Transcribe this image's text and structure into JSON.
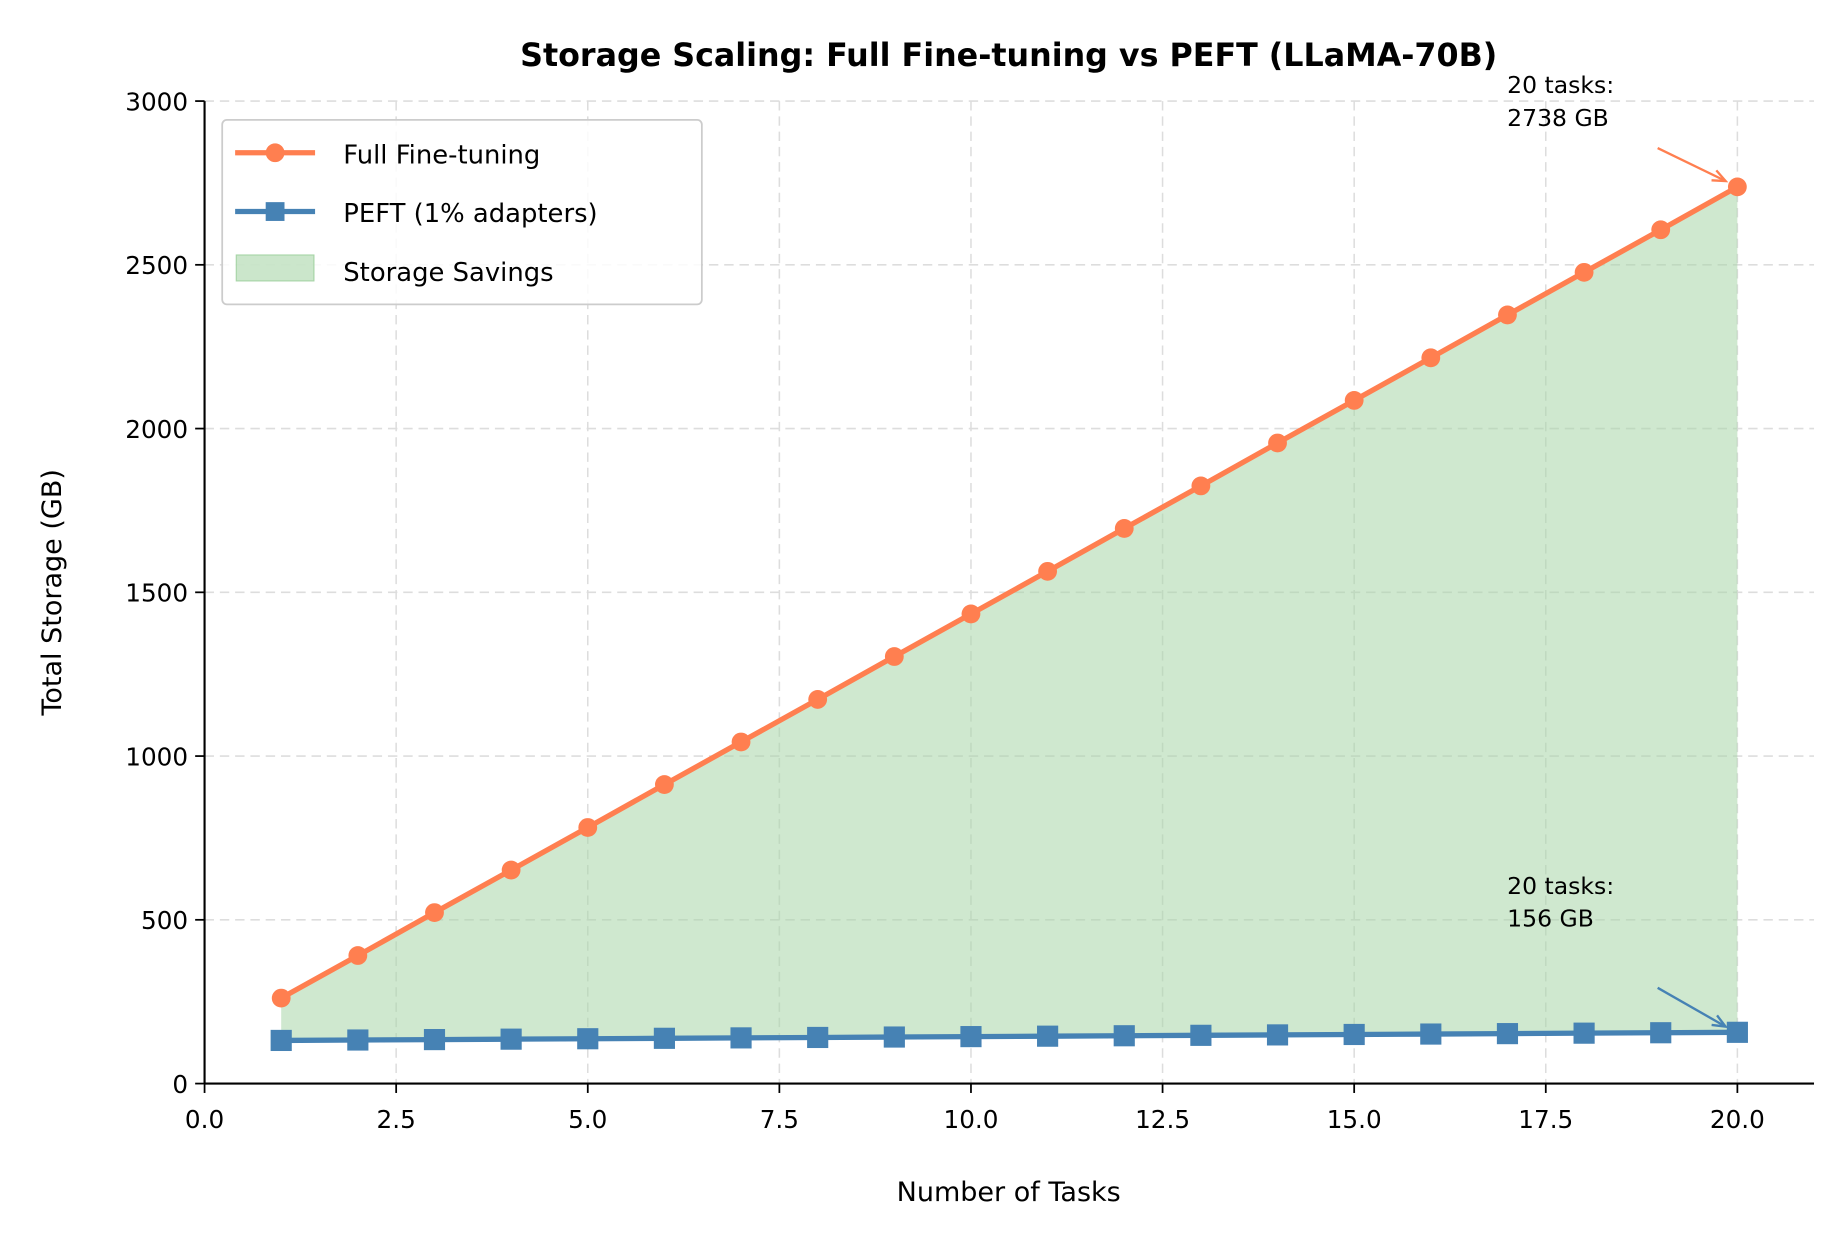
{
  "chart_data": {
    "type": "line",
    "title": "Storage Scaling: Full Fine-tuning vs PEFT (LLaMA-70B)",
    "xlabel": "Number of Tasks",
    "ylabel": "Total Storage (GB)",
    "xlim": [
      0,
      21
    ],
    "ylim": [
      0,
      3000
    ],
    "xticks": [
      "0.0",
      "2.5",
      "5.0",
      "7.5",
      "10.0",
      "12.5",
      "15.0",
      "17.5",
      "20.0"
    ],
    "yticks": [
      "0",
      "500",
      "1000",
      "1500",
      "2000",
      "2500",
      "3000"
    ],
    "grid": true,
    "legend_placement": "upper-left",
    "x": [
      1,
      2,
      3,
      4,
      5,
      6,
      7,
      8,
      9,
      10,
      11,
      12,
      13,
      14,
      15,
      16,
      17,
      18,
      19,
      20
    ],
    "series": [
      {
        "name": "Full Fine-tuning",
        "color": "#ff7f50",
        "marker": "circle",
        "values": [
          261,
          391,
          522,
          652,
          782,
          913,
          1043,
          1173,
          1304,
          1434,
          1564,
          1695,
          1825,
          1956,
          2086,
          2216,
          2347,
          2477,
          2607,
          2738
        ]
      },
      {
        "name": "PEFT (1% adapters)",
        "color": "#4682b4",
        "marker": "square",
        "values": [
          131.7,
          133.0,
          134.3,
          135.6,
          136.9,
          138.2,
          139.5,
          140.8,
          142.1,
          143.4,
          144.7,
          146.0,
          147.3,
          148.6,
          149.9,
          151.2,
          152.5,
          153.9,
          155.2,
          156.5
        ]
      }
    ],
    "fill": {
      "name": "Storage Savings",
      "color": "#a8d5a8"
    },
    "annotations": [
      {
        "text_line1": "20 tasks:",
        "text_line2": "2738 GB",
        "x": 20,
        "y": 2738,
        "color": "#ff7f50"
      },
      {
        "text_line1": "20 tasks:",
        "text_line2": "156 GB",
        "x": 20,
        "y": 156,
        "color": "#4682b4"
      }
    ]
  }
}
